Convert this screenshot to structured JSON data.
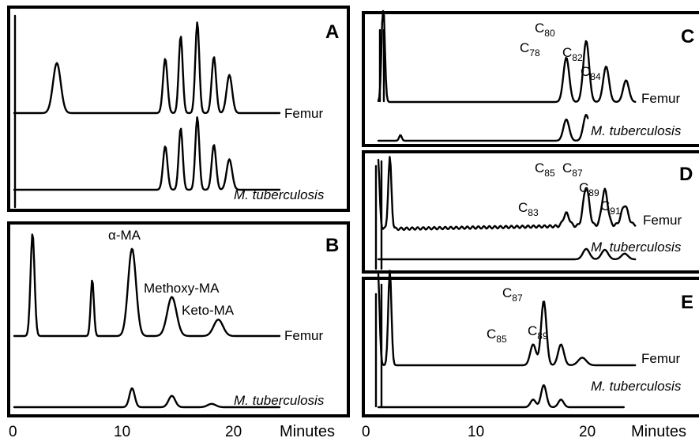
{
  "chart_data": [
    {
      "panel": "A",
      "type": "line",
      "xlim": [
        0,
        30
      ],
      "series": [
        {
          "name": "Femur",
          "peaks": [
            [
              -1.8,
              5.0,
              0.12
            ],
            [
              4,
              0.55,
              0.35
            ],
            [
              13.8,
              0.6,
              0.2
            ],
            [
              15.2,
              0.85,
              0.18
            ],
            [
              16.7,
              1.0,
              0.18
            ],
            [
              18.2,
              0.62,
              0.2
            ],
            [
              19.6,
              0.42,
              0.25
            ]
          ]
        },
        {
          "name": "M. tuberculosis",
          "peaks": [
            [
              13.8,
              0.6,
              0.2
            ],
            [
              15.2,
              0.85,
              0.18
            ],
            [
              16.7,
              1.0,
              0.18
            ],
            [
              18.2,
              0.62,
              0.2
            ],
            [
              19.6,
              0.42,
              0.25
            ]
          ]
        }
      ]
    },
    {
      "panel": "B",
      "type": "line",
      "xlim": [
        0,
        25
      ],
      "series": [
        {
          "name": "Femur",
          "peaks": [
            [
              1.5,
              1.0,
              0.15
            ],
            [
              6.0,
              0.55,
              0.12
            ],
            [
              9.0,
              0.85,
              0.3
            ],
            [
              12.0,
              0.38,
              0.35
            ],
            [
              15.5,
              0.16,
              0.35
            ]
          ]
        },
        {
          "name": "M. tuberculosis",
          "peaks": [
            [
              9.0,
              0.4,
              0.2
            ],
            [
              12.0,
              0.24,
              0.25
            ],
            [
              15.0,
              0.07,
              0.3
            ]
          ]
        }
      ],
      "annotations": [
        "α-MA",
        "Methoxy-MA",
        "Keto-MA"
      ]
    },
    {
      "panel": "C",
      "type": "line",
      "xlim": [
        0,
        25
      ],
      "series": [
        {
          "name": "Femur",
          "peaks": [
            [
              1.2,
              1.0,
              0.12
            ],
            [
              15.0,
              0.45,
              0.22
            ],
            [
              16.5,
              0.62,
              0.22
            ],
            [
              18.0,
              0.36,
              0.22
            ],
            [
              19.5,
              0.22,
              0.22
            ]
          ]
        },
        {
          "name": "M. tuberculosis",
          "peaks": [
            [
              2.5,
              0.12,
              0.1
            ],
            [
              15.0,
              0.45,
              0.22
            ],
            [
              16.5,
              0.55,
              0.22
            ],
            [
              18.0,
              0.3,
              0.22
            ],
            [
              19.5,
              0.2,
              0.22
            ]
          ]
        }
      ],
      "peak_labels": [
        {
          "base": "C",
          "sub": "78"
        },
        {
          "base": "C",
          "sub": "80"
        },
        {
          "base": "C",
          "sub": "82"
        },
        {
          "base": "C",
          "sub": "84"
        }
      ]
    },
    {
      "panel": "D",
      "type": "line",
      "xlim": [
        0,
        25
      ],
      "series": [
        {
          "name": "Femur",
          "peaks": [
            [
              0.8,
              1.0,
              0.12
            ],
            [
              1.7,
              1.0,
              0.12
            ],
            [
              15.0,
              0.18,
              0.22
            ],
            [
              16.5,
              0.55,
              0.22
            ],
            [
              17.9,
              0.5,
              0.22
            ],
            [
              19.4,
              0.28,
              0.25
            ],
            [
              21.0,
              0.18,
              0.3
            ]
          ]
        },
        {
          "name": "M. tuberculosis",
          "peaks": [
            [
              16.5,
              0.22,
              0.25
            ],
            [
              17.9,
              0.2,
              0.25
            ],
            [
              19.4,
              0.12,
              0.25
            ]
          ]
        }
      ],
      "peak_labels": [
        {
          "base": "C",
          "sub": "83"
        },
        {
          "base": "C",
          "sub": "85"
        },
        {
          "base": "C",
          "sub": "87"
        },
        {
          "base": "C",
          "sub": "89"
        },
        {
          "base": "C",
          "sub": "91"
        }
      ]
    },
    {
      "panel": "E",
      "type": "line",
      "xlim": [
        0,
        25
      ],
      "series": [
        {
          "name": "Femur",
          "peaks": [
            [
              0.8,
              1.0,
              0.12
            ],
            [
              1.7,
              1.0,
              0.12
            ],
            [
              12.5,
              0.22,
              0.22
            ],
            [
              13.3,
              0.68,
              0.2
            ],
            [
              14.6,
              0.22,
              0.22
            ],
            [
              16.2,
              0.08,
              0.3
            ]
          ]
        },
        {
          "name": "M. tuberculosis",
          "peaks": [
            [
              12.5,
              0.12,
              0.2
            ],
            [
              13.3,
              0.35,
              0.2
            ],
            [
              14.6,
              0.12,
              0.2
            ]
          ]
        }
      ],
      "peak_labels": [
        {
          "base": "C",
          "sub": "85"
        },
        {
          "base": "C",
          "sub": "87"
        },
        {
          "base": "C",
          "sub": "89"
        }
      ]
    }
  ],
  "axis": {
    "ticks": [
      "0",
      "10",
      "20"
    ],
    "title": "Minutes"
  }
}
